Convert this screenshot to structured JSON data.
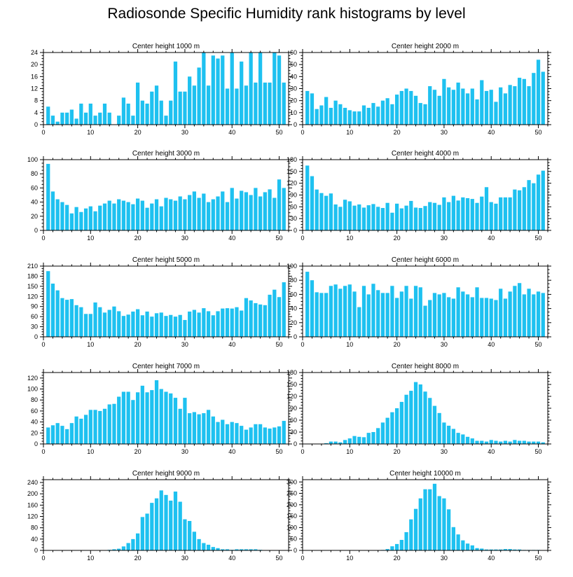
{
  "figure": {
    "title": "Radiosonde Specific Humidity rank histograms by level",
    "bar_color": "#1ec1f0",
    "axis_color": "#000000"
  },
  "chart_data": [
    {
      "type": "bar",
      "title": "Center height 1000 m",
      "xlim": [
        0,
        52
      ],
      "ylim": [
        0,
        24
      ],
      "xticks": [
        0,
        10,
        20,
        30,
        40,
        50
      ],
      "yticks": [
        0,
        4,
        8,
        12,
        16,
        20,
        24
      ],
      "x": [
        1,
        2,
        3,
        4,
        5,
        6,
        7,
        8,
        9,
        10,
        11,
        12,
        13,
        14,
        15,
        16,
        17,
        18,
        19,
        20,
        21,
        22,
        23,
        24,
        25,
        26,
        27,
        28,
        29,
        30,
        31,
        32,
        33,
        34,
        35,
        36,
        37,
        38,
        39,
        40,
        41,
        42,
        43,
        44,
        45,
        46,
        47,
        48,
        49,
        50,
        51
      ],
      "values": [
        6,
        3,
        1,
        4,
        4,
        5,
        2,
        7,
        4,
        7,
        3,
        4,
        7,
        4,
        0,
        3,
        9,
        7,
        3,
        14,
        8,
        7,
        11,
        13,
        8,
        3,
        8,
        21,
        11,
        11,
        16,
        13,
        19,
        24,
        13,
        23,
        22,
        23,
        12,
        24,
        12,
        21,
        13,
        24,
        14,
        24,
        14,
        14,
        24,
        23,
        14
      ]
    },
    {
      "type": "bar",
      "title": "Center height 2000 m",
      "xlim": [
        0,
        52
      ],
      "ylim": [
        0,
        60
      ],
      "xticks": [
        0,
        10,
        20,
        30,
        40,
        50
      ],
      "yticks": [
        0,
        10,
        20,
        30,
        40,
        50,
        60
      ],
      "x": [
        1,
        2,
        3,
        4,
        5,
        6,
        7,
        8,
        9,
        10,
        11,
        12,
        13,
        14,
        15,
        16,
        17,
        18,
        19,
        20,
        21,
        22,
        23,
        24,
        25,
        26,
        27,
        28,
        29,
        30,
        31,
        32,
        33,
        34,
        35,
        36,
        37,
        38,
        39,
        40,
        41,
        42,
        43,
        44,
        45,
        46,
        47,
        48,
        49,
        50,
        51
      ],
      "values": [
        28,
        26,
        13,
        16,
        23,
        14,
        20,
        17,
        14,
        12,
        11,
        11,
        16,
        14,
        18,
        15,
        20,
        22,
        17,
        25,
        28,
        30,
        28,
        24,
        18,
        17,
        32,
        29,
        24,
        38,
        31,
        29,
        35,
        30,
        26,
        30,
        21,
        37,
        28,
        29,
        19,
        31,
        26,
        33,
        32,
        39,
        38,
        32,
        43,
        54,
        44
      ]
    },
    {
      "type": "bar",
      "title": "Center height 3000 m",
      "xlim": [
        0,
        52
      ],
      "ylim": [
        0,
        100
      ],
      "xticks": [
        0,
        10,
        20,
        30,
        40,
        50
      ],
      "yticks": [
        0,
        20,
        40,
        60,
        80,
        100
      ],
      "x": [
        1,
        2,
        3,
        4,
        5,
        6,
        7,
        8,
        9,
        10,
        11,
        12,
        13,
        14,
        15,
        16,
        17,
        18,
        19,
        20,
        21,
        22,
        23,
        24,
        25,
        26,
        27,
        28,
        29,
        30,
        31,
        32,
        33,
        34,
        35,
        36,
        37,
        38,
        39,
        40,
        41,
        42,
        43,
        44,
        45,
        46,
        47,
        48,
        49,
        50,
        51
      ],
      "values": [
        94,
        55,
        44,
        40,
        36,
        24,
        33,
        26,
        31,
        34,
        27,
        35,
        38,
        42,
        38,
        44,
        42,
        40,
        37,
        45,
        42,
        32,
        38,
        44,
        34,
        46,
        44,
        42,
        48,
        44,
        50,
        55,
        46,
        52,
        40,
        44,
        48,
        55,
        40,
        60,
        45,
        56,
        54,
        50,
        60,
        48,
        54,
        58,
        46,
        72,
        60
      ]
    },
    {
      "type": "bar",
      "title": "Center height 4000 m",
      "xlim": [
        0,
        52
      ],
      "ylim": [
        0,
        180
      ],
      "xticks": [
        0,
        10,
        20,
        30,
        40,
        50
      ],
      "yticks": [
        0,
        30,
        60,
        90,
        120,
        150,
        180
      ],
      "x": [
        1,
        2,
        3,
        4,
        5,
        6,
        7,
        8,
        9,
        10,
        11,
        12,
        13,
        14,
        15,
        16,
        17,
        18,
        19,
        20,
        21,
        22,
        23,
        24,
        25,
        26,
        27,
        28,
        29,
        30,
        31,
        32,
        33,
        34,
        35,
        36,
        37,
        38,
        39,
        40,
        41,
        42,
        43,
        44,
        45,
        46,
        47,
        48,
        49,
        50,
        51
      ],
      "values": [
        165,
        138,
        104,
        95,
        88,
        94,
        66,
        60,
        78,
        74,
        63,
        66,
        58,
        64,
        67,
        60,
        57,
        70,
        45,
        68,
        56,
        63,
        75,
        58,
        57,
        62,
        72,
        70,
        65,
        84,
        72,
        88,
        76,
        84,
        82,
        80,
        70,
        86,
        110,
        72,
        68,
        84,
        84,
        84,
        104,
        102,
        110,
        128,
        120,
        142,
        152
      ]
    },
    {
      "type": "bar",
      "title": "Center height 5000 m",
      "xlim": [
        0,
        52
      ],
      "ylim": [
        0,
        210
      ],
      "xticks": [
        0,
        10,
        20,
        30,
        40,
        50
      ],
      "yticks": [
        0,
        30,
        60,
        90,
        120,
        150,
        180,
        210
      ],
      "x": [
        1,
        2,
        3,
        4,
        5,
        6,
        7,
        8,
        9,
        10,
        11,
        12,
        13,
        14,
        15,
        16,
        17,
        18,
        19,
        20,
        21,
        22,
        23,
        24,
        25,
        26,
        27,
        28,
        29,
        30,
        31,
        32,
        33,
        34,
        35,
        36,
        37,
        38,
        39,
        40,
        41,
        42,
        43,
        44,
        45,
        46,
        47,
        48,
        49,
        50,
        51
      ],
      "values": [
        195,
        158,
        138,
        115,
        110,
        112,
        94,
        88,
        68,
        68,
        102,
        88,
        72,
        80,
        90,
        76,
        62,
        66,
        75,
        82,
        64,
        75,
        60,
        70,
        72,
        62,
        65,
        60,
        65,
        50,
        75,
        80,
        72,
        85,
        76,
        64,
        76,
        84,
        85,
        84,
        88,
        78,
        115,
        108,
        100,
        96,
        94,
        125,
        140,
        118,
        162
      ]
    },
    {
      "type": "bar",
      "title": "Center height 6000 m",
      "xlim": [
        0,
        52
      ],
      "ylim": [
        0,
        100
      ],
      "xticks": [
        0,
        10,
        20,
        30,
        40,
        50
      ],
      "yticks": [
        0,
        20,
        40,
        60,
        80,
        100
      ],
      "x": [
        1,
        2,
        3,
        4,
        5,
        6,
        7,
        8,
        9,
        10,
        11,
        12,
        13,
        14,
        15,
        16,
        17,
        18,
        19,
        20,
        21,
        22,
        23,
        24,
        25,
        26,
        27,
        28,
        29,
        30,
        31,
        32,
        33,
        34,
        35,
        36,
        37,
        38,
        39,
        40,
        41,
        42,
        43,
        44,
        45,
        46,
        47,
        48,
        49,
        50,
        51
      ],
      "values": [
        92,
        80,
        63,
        62,
        62,
        72,
        74,
        68,
        72,
        74,
        64,
        42,
        72,
        60,
        75,
        66,
        62,
        62,
        72,
        55,
        64,
        72,
        54,
        72,
        70,
        44,
        52,
        62,
        60,
        62,
        56,
        54,
        70,
        64,
        60,
        56,
        70,
        55,
        55,
        54,
        52,
        68,
        54,
        64,
        72,
        76,
        60,
        68,
        60,
        64,
        62
      ]
    },
    {
      "type": "bar",
      "title": "Center height 7000 m",
      "xlim": [
        0,
        52
      ],
      "ylim": [
        0,
        130
      ],
      "xticks": [
        0,
        10,
        20,
        30,
        40,
        50
      ],
      "yticks": [
        0,
        20,
        40,
        60,
        80,
        100,
        120
      ],
      "x": [
        1,
        2,
        3,
        4,
        5,
        6,
        7,
        8,
        9,
        10,
        11,
        12,
        13,
        14,
        15,
        16,
        17,
        18,
        19,
        20,
        21,
        22,
        23,
        24,
        25,
        26,
        27,
        28,
        29,
        30,
        31,
        32,
        33,
        34,
        35,
        36,
        37,
        38,
        39,
        40,
        41,
        42,
        43,
        44,
        45,
        46,
        47,
        48,
        49,
        50,
        51
      ],
      "values": [
        30,
        34,
        38,
        33,
        27,
        38,
        50,
        46,
        53,
        62,
        62,
        60,
        64,
        72,
        73,
        86,
        95,
        95,
        80,
        94,
        106,
        94,
        98,
        116,
        100,
        95,
        92,
        84,
        64,
        84,
        56,
        58,
        54,
        56,
        62,
        50,
        40,
        44,
        36,
        40,
        38,
        33,
        26,
        30,
        36,
        36,
        30,
        28,
        30,
        32,
        42
      ]
    },
    {
      "type": "bar",
      "title": "Center height 8000 m",
      "xlim": [
        0,
        52
      ],
      "ylim": [
        0,
        180
      ],
      "xticks": [
        0,
        10,
        20,
        30,
        40,
        50
      ],
      "yticks": [
        0,
        30,
        60,
        90,
        120,
        150,
        180
      ],
      "x": [
        1,
        2,
        3,
        4,
        5,
        6,
        7,
        8,
        9,
        10,
        11,
        12,
        13,
        14,
        15,
        16,
        17,
        18,
        19,
        20,
        21,
        22,
        23,
        24,
        25,
        26,
        27,
        28,
        29,
        30,
        31,
        32,
        33,
        34,
        35,
        36,
        37,
        38,
        39,
        40,
        41,
        42,
        43,
        44,
        45,
        46,
        47,
        48,
        49,
        50,
        51
      ],
      "values": [
        0,
        0,
        0,
        0,
        2,
        6,
        6,
        4,
        10,
        14,
        20,
        18,
        17,
        28,
        30,
        40,
        54,
        66,
        80,
        90,
        106,
        124,
        134,
        156,
        150,
        132,
        116,
        96,
        78,
        54,
        46,
        38,
        28,
        24,
        18,
        14,
        8,
        8,
        6,
        10,
        8,
        6,
        8,
        6,
        10,
        8,
        8,
        6,
        6,
        6,
        4
      ]
    },
    {
      "type": "bar",
      "title": "Center height 9000 m",
      "xlim": [
        0,
        52
      ],
      "ylim": [
        0,
        250
      ],
      "xticks": [
        0,
        10,
        20,
        30,
        40,
        50
      ],
      "yticks": [
        0,
        40,
        80,
        120,
        160,
        200,
        240
      ],
      "x": [
        1,
        2,
        3,
        4,
        5,
        6,
        7,
        8,
        9,
        10,
        11,
        12,
        13,
        14,
        15,
        16,
        17,
        18,
        19,
        20,
        21,
        22,
        23,
        24,
        25,
        26,
        27,
        28,
        29,
        30,
        31,
        32,
        33,
        34,
        35,
        36,
        37,
        38,
        39,
        40,
        41,
        42,
        43,
        44,
        45,
        46,
        47,
        48,
        49,
        50,
        51
      ],
      "values": [
        0,
        0,
        0,
        0,
        0,
        0,
        0,
        0,
        0,
        0,
        0,
        0,
        0,
        2,
        4,
        6,
        14,
        26,
        40,
        60,
        118,
        130,
        168,
        184,
        212,
        196,
        176,
        208,
        172,
        110,
        104,
        66,
        40,
        26,
        20,
        12,
        8,
        4,
        4,
        2,
        4,
        4,
        4,
        4,
        4,
        2,
        0,
        0,
        0,
        0,
        0
      ]
    },
    {
      "type": "bar",
      "title": "Center height 10000 m",
      "xlim": [
        0,
        52
      ],
      "ylim": [
        0,
        310
      ],
      "xticks": [
        0,
        10,
        20,
        30,
        40,
        50
      ],
      "yticks": [
        0,
        50,
        100,
        150,
        200,
        250,
        300
      ],
      "x": [
        1,
        2,
        3,
        4,
        5,
        6,
        7,
        8,
        9,
        10,
        11,
        12,
        13,
        14,
        15,
        16,
        17,
        18,
        19,
        20,
        21,
        22,
        23,
        24,
        25,
        26,
        27,
        28,
        29,
        30,
        31,
        32,
        33,
        34,
        35,
        36,
        37,
        38,
        39,
        40,
        41,
        42,
        43,
        44,
        45,
        46,
        47,
        48,
        49,
        50,
        51
      ],
      "values": [
        0,
        0,
        0,
        0,
        0,
        0,
        0,
        0,
        0,
        0,
        0,
        0,
        0,
        0,
        0,
        0,
        2,
        6,
        18,
        28,
        46,
        80,
        136,
        182,
        228,
        268,
        268,
        292,
        238,
        228,
        180,
        102,
        70,
        44,
        30,
        22,
        10,
        8,
        4,
        4,
        4,
        4,
        6,
        6,
        4,
        4,
        2,
        2,
        2,
        2,
        0
      ]
    }
  ]
}
